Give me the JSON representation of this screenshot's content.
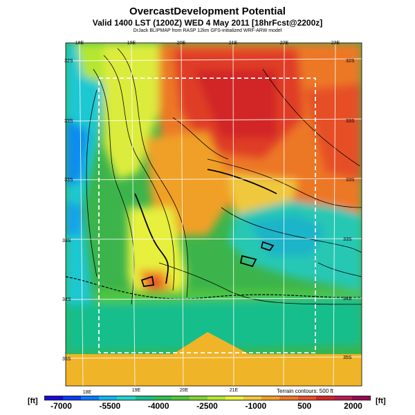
{
  "header": {
    "title": "OvercastDevelopment Potential",
    "subtitle": "Valid 1400 LST (1200Z) WED 4 May 2011 [18hrFcst@2200z]",
    "credit": "DrJack BLIPMAP from RASP 12km GFS-initialized WRF-ARW model"
  },
  "map": {
    "lon_labels_top": [
      "18E",
      "19E",
      "20E",
      "21E",
      "22E",
      "23E"
    ],
    "lon_labels_bottom": [
      "18E",
      "19E",
      "20E",
      "21E"
    ],
    "lat_labels_left": [
      "32S",
      "33S",
      "33S",
      "33S",
      "34S",
      "35S"
    ],
    "lat_labels_right": [
      "32S",
      "33S",
      "33S",
      "33S",
      "34S",
      "35S"
    ],
    "terrain_note": "Terrain contours: 500 ft"
  },
  "colorbar": {
    "unit_left": "[ft]",
    "unit_right": "[ft]",
    "labels": [
      "-7000",
      "-5500",
      "-4000",
      "-2500",
      "-1000",
      "500",
      "2000"
    ],
    "colors": [
      "#1a0ad6",
      "#0a3cf0",
      "#0a78ff",
      "#14b4f0",
      "#28d2c8",
      "#19be8c",
      "#32be50",
      "#50c83c",
      "#82d232",
      "#b4e632",
      "#e6f03c",
      "#f0c83c",
      "#f0a028",
      "#ec7828",
      "#e65028",
      "#d22828",
      "#b41e50",
      "#960a50"
    ]
  }
}
